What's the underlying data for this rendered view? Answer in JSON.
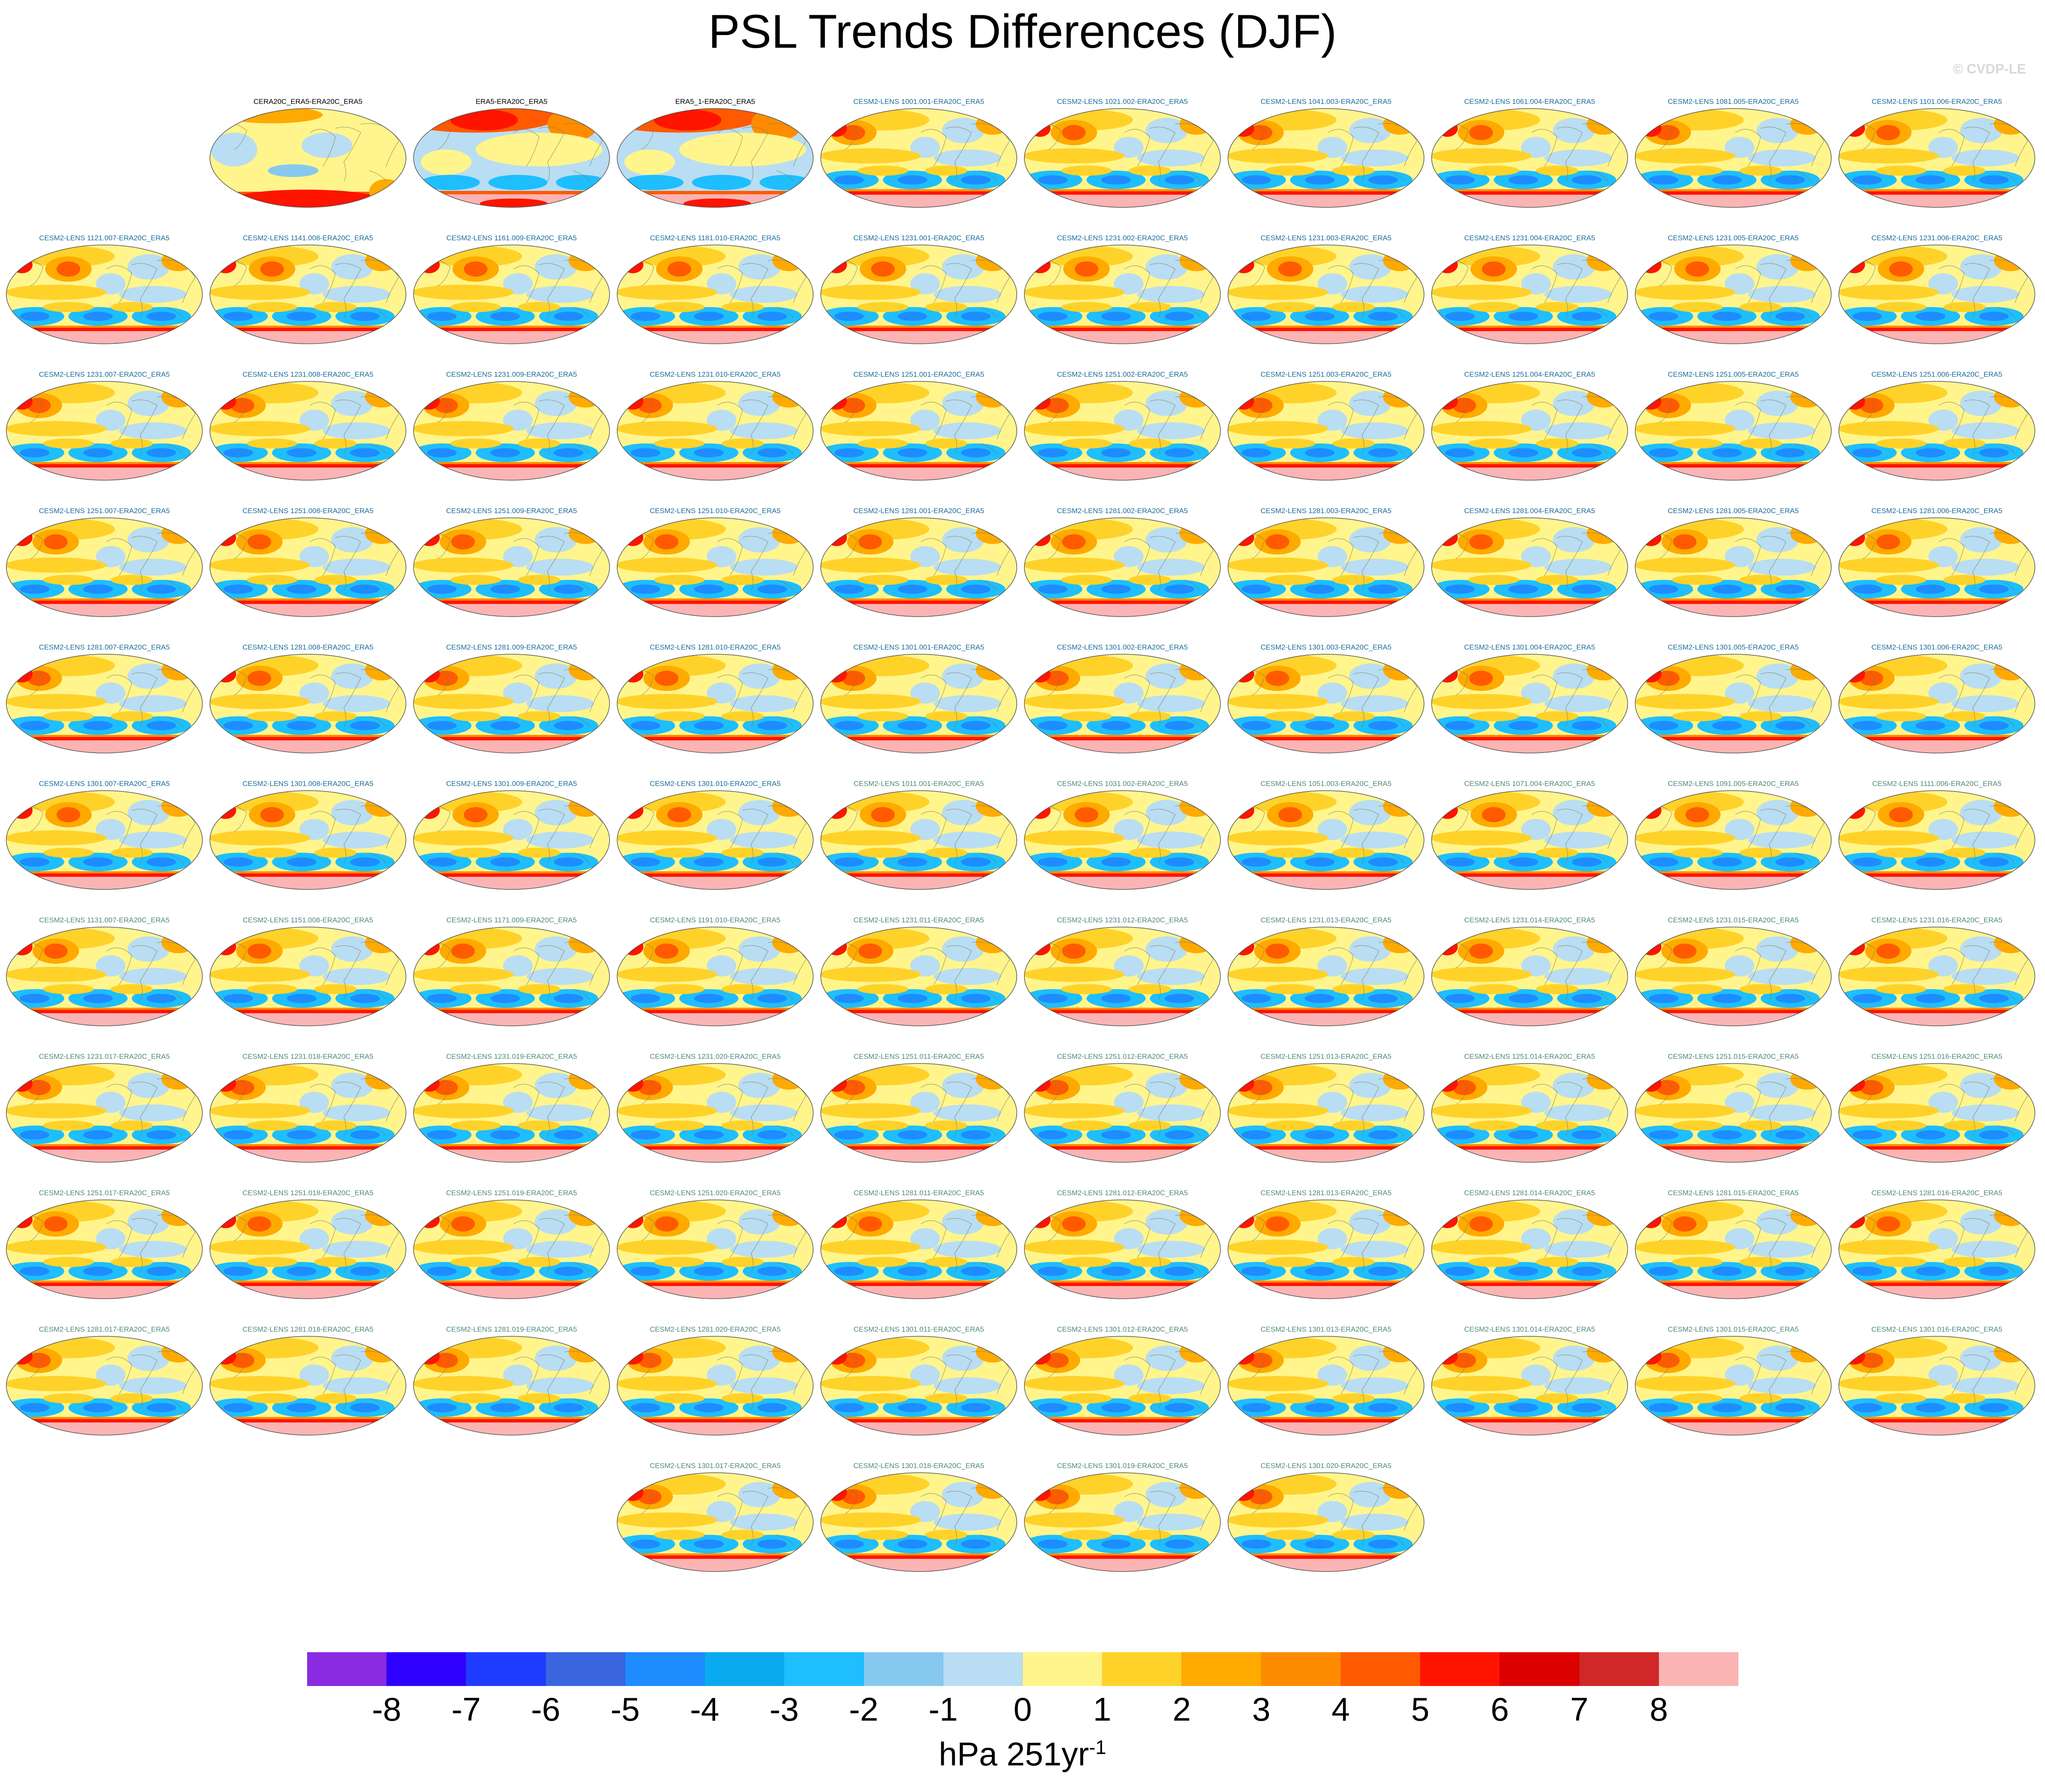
{
  "title": "PSL Trends Differences (DJF)",
  "credit": "© CVDP-LE",
  "colorbar": {
    "ticks": [
      "-8",
      "-7",
      "-6",
      "-5",
      "-4",
      "-3",
      "-2",
      "-1",
      "0",
      "1",
      "2",
      "3",
      "4",
      "5",
      "6",
      "7",
      "8"
    ],
    "colors": [
      "#8a2be2",
      "#2e00ff",
      "#1e3cff",
      "#3a65e0",
      "#1e8cff",
      "#0aaaf0",
      "#1ebeff",
      "#87c8ef",
      "#b9ddf2",
      "#fff58c",
      "#ffd22a",
      "#ffaa00",
      "#ff8c00",
      "#ff5a00",
      "#ff1400",
      "#dc0000",
      "#d02828",
      "#fbb4b4"
    ],
    "unit_prefix": "hPa 251yr",
    "unit_sup": "-1"
  },
  "chart_data": {
    "type": "heatmap",
    "title": "PSL Trends Differences (DJF)",
    "season": "DJF",
    "variable": "PSL",
    "units": "hPa 251yr-1",
    "levels": [
      -8,
      -7,
      -6,
      -5,
      -4,
      -3,
      -2,
      -1,
      0,
      1,
      2,
      3,
      4,
      5,
      6,
      7,
      8
    ],
    "panels": [
      {
        "label": "CERA20C_ERA5-ERA20C_ERA5",
        "style": "obs",
        "pat": "x"
      },
      {
        "label": "ERA5-ERA20C_ERA5",
        "style": "obs",
        "pat": "y"
      },
      {
        "label": "ERA5_1-ERA20C_ERA5",
        "style": "obs",
        "pat": "y"
      },
      {
        "label": "CESM2-LENS 1001.001-ERA20C_ERA5",
        "style": "a",
        "pat": "a"
      },
      {
        "label": "CESM2-LENS 1021.002-ERA20C_ERA5",
        "style": "a",
        "pat": "b"
      },
      {
        "label": "CESM2-LENS 1041.003-ERA20C_ERA5",
        "style": "a",
        "pat": "a"
      },
      {
        "label": "CESM2-LENS 1061.004-ERA20C_ERA5",
        "style": "a",
        "pat": "b"
      },
      {
        "label": "CESM2-LENS 1081.005-ERA20C_ERA5",
        "style": "a",
        "pat": "a"
      },
      {
        "label": "CESM2-LENS 1101.006-ERA20C_ERA5",
        "style": "a",
        "pat": "b"
      },
      {
        "label": "CESM2-LENS 1121.007-ERA20C_ERA5",
        "style": "a",
        "pat": "c"
      },
      {
        "label": "CESM2-LENS 1141.008-ERA20C_ERA5",
        "style": "a",
        "pat": "c"
      },
      {
        "label": "CESM2-LENS 1161.009-ERA20C_ERA5",
        "style": "a",
        "pat": "c"
      },
      {
        "label": "CESM2-LENS 1181.010-ERA20C_ERA5",
        "style": "a",
        "pat": "c"
      },
      {
        "label": "CESM2-LENS 1231.001-ERA20C_ERA5",
        "style": "a",
        "pat": "c"
      },
      {
        "label": "CESM2-LENS 1231.002-ERA20C_ERA5",
        "style": "a",
        "pat": "c"
      },
      {
        "label": "CESM2-LENS 1231.003-ERA20C_ERA5",
        "style": "a",
        "pat": "c"
      },
      {
        "label": "CESM2-LENS 1231.004-ERA20C_ERA5",
        "style": "a",
        "pat": "c"
      },
      {
        "label": "CESM2-LENS 1231.005-ERA20C_ERA5",
        "style": "a",
        "pat": "c"
      },
      {
        "label": "CESM2-LENS 1231.006-ERA20C_ERA5",
        "style": "a",
        "pat": "c"
      },
      {
        "label": "CESM2-LENS 1231.007-ERA20C_ERA5",
        "style": "a",
        "pat": "a"
      },
      {
        "label": "CESM2-LENS 1231.008-ERA20C_ERA5",
        "style": "a",
        "pat": "a"
      },
      {
        "label": "CESM2-LENS 1231.009-ERA20C_ERA5",
        "style": "a",
        "pat": "a"
      },
      {
        "label": "CESM2-LENS 1231.010-ERA20C_ERA5",
        "style": "a",
        "pat": "a"
      },
      {
        "label": "CESM2-LENS 1251.001-ERA20C_ERA5",
        "style": "a",
        "pat": "a"
      },
      {
        "label": "CESM2-LENS 1251.002-ERA20C_ERA5",
        "style": "a",
        "pat": "a"
      },
      {
        "label": "CESM2-LENS 1251.003-ERA20C_ERA5",
        "style": "a",
        "pat": "a"
      },
      {
        "label": "CESM2-LENS 1251.004-ERA20C_ERA5",
        "style": "a",
        "pat": "a"
      },
      {
        "label": "CESM2-LENS 1251.005-ERA20C_ERA5",
        "style": "a",
        "pat": "a"
      },
      {
        "label": "CESM2-LENS 1251.006-ERA20C_ERA5",
        "style": "a",
        "pat": "a"
      },
      {
        "label": "CESM2-LENS 1251.007-ERA20C_ERA5",
        "style": "a",
        "pat": "b"
      },
      {
        "label": "CESM2-LENS 1251.008-ERA20C_ERA5",
        "style": "a",
        "pat": "b"
      },
      {
        "label": "CESM2-LENS 1251.009-ERA20C_ERA5",
        "style": "a",
        "pat": "b"
      },
      {
        "label": "CESM2-LENS 1251.010-ERA20C_ERA5",
        "style": "a",
        "pat": "b"
      },
      {
        "label": "CESM2-LENS 1281.001-ERA20C_ERA5",
        "style": "a",
        "pat": "b"
      },
      {
        "label": "CESM2-LENS 1281.002-ERA20C_ERA5",
        "style": "a",
        "pat": "b"
      },
      {
        "label": "CESM2-LENS 1281.003-ERA20C_ERA5",
        "style": "a",
        "pat": "b"
      },
      {
        "label": "CESM2-LENS 1281.004-ERA20C_ERA5",
        "style": "a",
        "pat": "b"
      },
      {
        "label": "CESM2-LENS 1281.005-ERA20C_ERA5",
        "style": "a",
        "pat": "b"
      },
      {
        "label": "CESM2-LENS 1281.006-ERA20C_ERA5",
        "style": "a",
        "pat": "b"
      },
      {
        "label": "CESM2-LENS 1281.007-ERA20C_ERA5",
        "style": "a",
        "pat": "a"
      },
      {
        "label": "CESM2-LENS 1281.008-ERA20C_ERA5",
        "style": "a",
        "pat": "b"
      },
      {
        "label": "CESM2-LENS 1281.009-ERA20C_ERA5",
        "style": "a",
        "pat": "a"
      },
      {
        "label": "CESM2-LENS 1281.010-ERA20C_ERA5",
        "style": "a",
        "pat": "b"
      },
      {
        "label": "CESM2-LENS 1301.001-ERA20C_ERA5",
        "style": "a",
        "pat": "a"
      },
      {
        "label": "CESM2-LENS 1301.002-ERA20C_ERA5",
        "style": "a",
        "pat": "a"
      },
      {
        "label": "CESM2-LENS 1301.003-ERA20C_ERA5",
        "style": "a",
        "pat": "b"
      },
      {
        "label": "CESM2-LENS 1301.004-ERA20C_ERA5",
        "style": "a",
        "pat": "b"
      },
      {
        "label": "CESM2-LENS 1301.005-ERA20C_ERA5",
        "style": "a",
        "pat": "a"
      },
      {
        "label": "CESM2-LENS 1301.006-ERA20C_ERA5",
        "style": "a",
        "pat": "a"
      },
      {
        "label": "CESM2-LENS 1301.007-ERA20C_ERA5",
        "style": "a",
        "pat": "c"
      },
      {
        "label": "CESM2-LENS 1301.008-ERA20C_ERA5",
        "style": "a",
        "pat": "c"
      },
      {
        "label": "CESM2-LENS 1301.009-ERA20C_ERA5",
        "style": "a",
        "pat": "c"
      },
      {
        "label": "CESM2-LENS 1301.010-ERA20C_ERA5",
        "style": "a",
        "pat": "c"
      },
      {
        "label": "CESM2-LENS 1011.001-ERA20C_ERA5",
        "style": "b",
        "pat": "c"
      },
      {
        "label": "CESM2-LENS 1031.002-ERA20C_ERA5",
        "style": "b",
        "pat": "c"
      },
      {
        "label": "CESM2-LENS 1051.003-ERA20C_ERA5",
        "style": "b",
        "pat": "c"
      },
      {
        "label": "CESM2-LENS 1071.004-ERA20C_ERA5",
        "style": "b",
        "pat": "c"
      },
      {
        "label": "CESM2-LENS 1091.005-ERA20C_ERA5",
        "style": "b",
        "pat": "c"
      },
      {
        "label": "CESM2-LENS 1111.006-ERA20C_ERA5",
        "style": "b",
        "pat": "c"
      },
      {
        "label": "CESM2-LENS 1131.007-ERA20C_ERA5",
        "style": "b",
        "pat": "b"
      },
      {
        "label": "CESM2-LENS 1151.008-ERA20C_ERA5",
        "style": "b",
        "pat": "b"
      },
      {
        "label": "CESM2-LENS 1171.009-ERA20C_ERA5",
        "style": "b",
        "pat": "b"
      },
      {
        "label": "CESM2-LENS 1191.010-ERA20C_ERA5",
        "style": "b",
        "pat": "b"
      },
      {
        "label": "CESM2-LENS 1231.011-ERA20C_ERA5",
        "style": "b",
        "pat": "b"
      },
      {
        "label": "CESM2-LENS 1231.012-ERA20C_ERA5",
        "style": "b",
        "pat": "b"
      },
      {
        "label": "CESM2-LENS 1231.013-ERA20C_ERA5",
        "style": "b",
        "pat": "b"
      },
      {
        "label": "CESM2-LENS 1231.014-ERA20C_ERA5",
        "style": "b",
        "pat": "b"
      },
      {
        "label": "CESM2-LENS 1231.015-ERA20C_ERA5",
        "style": "b",
        "pat": "b"
      },
      {
        "label": "CESM2-LENS 1231.016-ERA20C_ERA5",
        "style": "b",
        "pat": "b"
      },
      {
        "label": "CESM2-LENS 1231.017-ERA20C_ERA5",
        "style": "b",
        "pat": "a"
      },
      {
        "label": "CESM2-LENS 1231.018-ERA20C_ERA5",
        "style": "b",
        "pat": "a"
      },
      {
        "label": "CESM2-LENS 1231.019-ERA20C_ERA5",
        "style": "b",
        "pat": "a"
      },
      {
        "label": "CESM2-LENS 1231.020-ERA20C_ERA5",
        "style": "b",
        "pat": "a"
      },
      {
        "label": "CESM2-LENS 1251.011-ERA20C_ERA5",
        "style": "b",
        "pat": "a"
      },
      {
        "label": "CESM2-LENS 1251.012-ERA20C_ERA5",
        "style": "b",
        "pat": "a"
      },
      {
        "label": "CESM2-LENS 1251.013-ERA20C_ERA5",
        "style": "b",
        "pat": "a"
      },
      {
        "label": "CESM2-LENS 1251.014-ERA20C_ERA5",
        "style": "b",
        "pat": "a"
      },
      {
        "label": "CESM2-LENS 1251.015-ERA20C_ERA5",
        "style": "b",
        "pat": "a"
      },
      {
        "label": "CESM2-LENS 1251.016-ERA20C_ERA5",
        "style": "b",
        "pat": "a"
      },
      {
        "label": "CESM2-LENS 1251.017-ERA20C_ERA5",
        "style": "b",
        "pat": "b"
      },
      {
        "label": "CESM2-LENS 1251.018-ERA20C_ERA5",
        "style": "b",
        "pat": "b"
      },
      {
        "label": "CESM2-LENS 1251.019-ERA20C_ERA5",
        "style": "b",
        "pat": "b"
      },
      {
        "label": "CESM2-LENS 1251.020-ERA20C_ERA5",
        "style": "b",
        "pat": "b"
      },
      {
        "label": "CESM2-LENS 1281.011-ERA20C_ERA5",
        "style": "b",
        "pat": "b"
      },
      {
        "label": "CESM2-LENS 1281.012-ERA20C_ERA5",
        "style": "b",
        "pat": "b"
      },
      {
        "label": "CESM2-LENS 1281.013-ERA20C_ERA5",
        "style": "b",
        "pat": "b"
      },
      {
        "label": "CESM2-LENS 1281.014-ERA20C_ERA5",
        "style": "b",
        "pat": "b"
      },
      {
        "label": "CESM2-LENS 1281.015-ERA20C_ERA5",
        "style": "b",
        "pat": "b"
      },
      {
        "label": "CESM2-LENS 1281.016-ERA20C_ERA5",
        "style": "b",
        "pat": "b"
      },
      {
        "label": "CESM2-LENS 1281.017-ERA20C_ERA5",
        "style": "b",
        "pat": "a"
      },
      {
        "label": "CESM2-LENS 1281.018-ERA20C_ERA5",
        "style": "b",
        "pat": "a"
      },
      {
        "label": "CESM2-LENS 1281.019-ERA20C_ERA5",
        "style": "b",
        "pat": "a"
      },
      {
        "label": "CESM2-LENS 1281.020-ERA20C_ERA5",
        "style": "b",
        "pat": "a"
      },
      {
        "label": "CESM2-LENS 1301.011-ERA20C_ERA5",
        "style": "b",
        "pat": "a"
      },
      {
        "label": "CESM2-LENS 1301.012-ERA20C_ERA5",
        "style": "b",
        "pat": "a"
      },
      {
        "label": "CESM2-LENS 1301.013-ERA20C_ERA5",
        "style": "b",
        "pat": "a"
      },
      {
        "label": "CESM2-LENS 1301.014-ERA20C_ERA5",
        "style": "b",
        "pat": "a"
      },
      {
        "label": "CESM2-LENS 1301.015-ERA20C_ERA5",
        "style": "b",
        "pat": "a"
      },
      {
        "label": "CESM2-LENS 1301.016-ERA20C_ERA5",
        "style": "b",
        "pat": "a"
      },
      {
        "label": "CESM2-LENS 1301.017-ERA20C_ERA5",
        "style": "b",
        "pat": "a"
      },
      {
        "label": "CESM2-LENS 1301.018-ERA20C_ERA5",
        "style": "b",
        "pat": "a"
      },
      {
        "label": "CESM2-LENS 1301.019-ERA20C_ERA5",
        "style": "b",
        "pat": "a"
      },
      {
        "label": "CESM2-LENS 1301.020-ERA20C_ERA5",
        "style": "b",
        "pat": "a"
      }
    ]
  }
}
